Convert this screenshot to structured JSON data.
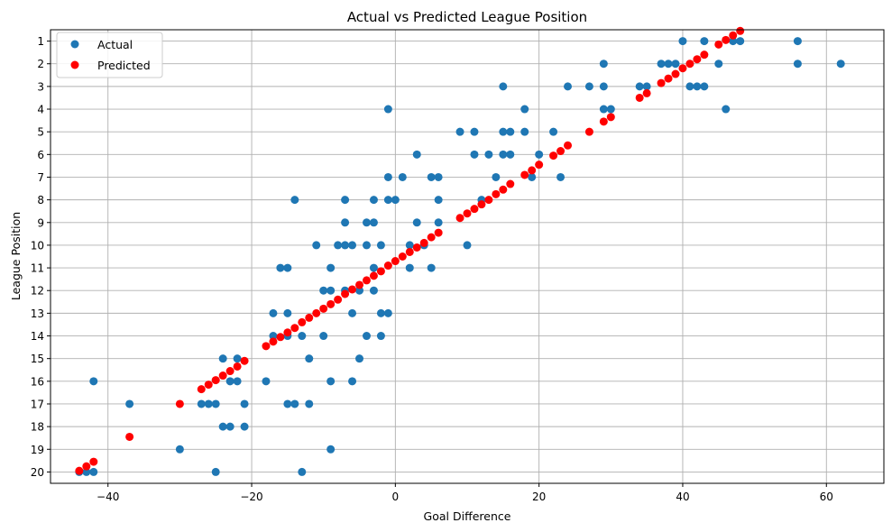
{
  "chart_data": {
    "type": "scatter",
    "title": "Actual vs Predicted League Position",
    "xlabel": "Goal Difference",
    "ylabel": "League Position",
    "xlim": [
      -48,
      68
    ],
    "ylim": [
      20.5,
      0.5
    ],
    "y_inverted": true,
    "grid": true,
    "legend_position": "top-left",
    "x_ticks": [
      -40,
      -20,
      0,
      20,
      40,
      60
    ],
    "x_tick_labels": [
      "−40",
      "−20",
      "0",
      "20",
      "40",
      "60"
    ],
    "y_ticks": [
      1,
      2,
      3,
      4,
      5,
      6,
      7,
      8,
      9,
      10,
      11,
      12,
      13,
      14,
      15,
      16,
      17,
      18,
      19,
      20
    ],
    "y_tick_labels": [
      "1",
      "2",
      "3",
      "4",
      "5",
      "6",
      "7",
      "8",
      "9",
      "10",
      "11",
      "12",
      "13",
      "14",
      "15",
      "16",
      "17",
      "18",
      "19",
      "20"
    ],
    "series": [
      {
        "name": "Actual",
        "color": "#1f77b4",
        "points": [
          [
            40,
            1
          ],
          [
            43,
            1
          ],
          [
            47,
            1
          ],
          [
            48,
            1
          ],
          [
            56,
            1
          ],
          [
            29,
            2
          ],
          [
            37,
            2
          ],
          [
            38,
            2
          ],
          [
            39,
            2
          ],
          [
            45,
            2
          ],
          [
            56,
            2
          ],
          [
            62,
            2
          ],
          [
            15,
            3
          ],
          [
            24,
            3
          ],
          [
            27,
            3
          ],
          [
            29,
            3
          ],
          [
            34,
            3
          ],
          [
            35,
            3
          ],
          [
            41,
            3
          ],
          [
            42,
            3
          ],
          [
            43,
            3
          ],
          [
            -1,
            4
          ],
          [
            18,
            4
          ],
          [
            29,
            4
          ],
          [
            30,
            4
          ],
          [
            46,
            4
          ],
          [
            9,
            5
          ],
          [
            11,
            5
          ],
          [
            15,
            5
          ],
          [
            16,
            5
          ],
          [
            18,
            5
          ],
          [
            22,
            5
          ],
          [
            3,
            6
          ],
          [
            11,
            6
          ],
          [
            13,
            6
          ],
          [
            15,
            6
          ],
          [
            16,
            6
          ],
          [
            20,
            6
          ],
          [
            -1,
            7
          ],
          [
            1,
            7
          ],
          [
            5,
            7
          ],
          [
            6,
            7
          ],
          [
            14,
            7
          ],
          [
            19,
            7
          ],
          [
            23,
            7
          ],
          [
            -14,
            8
          ],
          [
            -7,
            8
          ],
          [
            -3,
            8
          ],
          [
            -1,
            8
          ],
          [
            0,
            8
          ],
          [
            6,
            8
          ],
          [
            12,
            8
          ],
          [
            -7,
            9
          ],
          [
            -4,
            9
          ],
          [
            -3,
            9
          ],
          [
            3,
            9
          ],
          [
            6,
            9
          ],
          [
            -11,
            10
          ],
          [
            -8,
            10
          ],
          [
            -7,
            10
          ],
          [
            -6,
            10
          ],
          [
            -4,
            10
          ],
          [
            -2,
            10
          ],
          [
            2,
            10
          ],
          [
            4,
            10
          ],
          [
            10,
            10
          ],
          [
            -16,
            11
          ],
          [
            -15,
            11
          ],
          [
            -9,
            11
          ],
          [
            -3,
            11
          ],
          [
            2,
            11
          ],
          [
            5,
            11
          ],
          [
            -10,
            12
          ],
          [
            -9,
            12
          ],
          [
            -7,
            12
          ],
          [
            -5,
            12
          ],
          [
            -3,
            12
          ],
          [
            -17,
            13
          ],
          [
            -15,
            13
          ],
          [
            -6,
            13
          ],
          [
            -2,
            13
          ],
          [
            -1,
            13
          ],
          [
            -17,
            14
          ],
          [
            -15,
            14
          ],
          [
            -13,
            14
          ],
          [
            -10,
            14
          ],
          [
            -4,
            14
          ],
          [
            -2,
            14
          ],
          [
            -24,
            15
          ],
          [
            -22,
            15
          ],
          [
            -12,
            15
          ],
          [
            -5,
            15
          ],
          [
            -42,
            16
          ],
          [
            -23,
            16
          ],
          [
            -22,
            16
          ],
          [
            -18,
            16
          ],
          [
            -9,
            16
          ],
          [
            -6,
            16
          ],
          [
            -37,
            17
          ],
          [
            -27,
            17
          ],
          [
            -26,
            17
          ],
          [
            -25,
            17
          ],
          [
            -21,
            17
          ],
          [
            -15,
            17
          ],
          [
            -14,
            17
          ],
          [
            -12,
            17
          ],
          [
            -24,
            18
          ],
          [
            -23,
            18
          ],
          [
            -21,
            18
          ],
          [
            -30,
            19
          ],
          [
            -9,
            19
          ],
          [
            -44,
            20
          ],
          [
            -43,
            20
          ],
          [
            -42,
            20
          ],
          [
            -25,
            20
          ],
          [
            -13,
            20
          ]
        ]
      },
      {
        "name": "Predicted",
        "color": "#ff0000",
        "points": [
          [
            -44,
            19.95
          ],
          [
            -43,
            19.75
          ],
          [
            -42,
            19.55
          ],
          [
            -37,
            18.45
          ],
          [
            -30,
            17.0
          ],
          [
            -27,
            16.35
          ],
          [
            -26,
            16.15
          ],
          [
            -25,
            15.95
          ],
          [
            -24,
            15.75
          ],
          [
            -23,
            15.55
          ],
          [
            -22,
            15.35
          ],
          [
            -21,
            15.1
          ],
          [
            -18,
            14.45
          ],
          [
            -17,
            14.25
          ],
          [
            -16,
            14.05
          ],
          [
            -15,
            13.85
          ],
          [
            -14,
            13.65
          ],
          [
            -13,
            13.4
          ],
          [
            -12,
            13.2
          ],
          [
            -11,
            13.0
          ],
          [
            -10,
            12.8
          ],
          [
            -9,
            12.6
          ],
          [
            -8,
            12.4
          ],
          [
            -7,
            12.15
          ],
          [
            -6,
            11.95
          ],
          [
            -5,
            11.75
          ],
          [
            -4,
            11.55
          ],
          [
            -3,
            11.35
          ],
          [
            -2,
            11.15
          ],
          [
            -1,
            10.9
          ],
          [
            0,
            10.7
          ],
          [
            1,
            10.5
          ],
          [
            2,
            10.3
          ],
          [
            3,
            10.1
          ],
          [
            4,
            9.9
          ],
          [
            5,
            9.65
          ],
          [
            6,
            9.45
          ],
          [
            9,
            8.8
          ],
          [
            10,
            8.6
          ],
          [
            11,
            8.4
          ],
          [
            12,
            8.2
          ],
          [
            13,
            8.0
          ],
          [
            14,
            7.75
          ],
          [
            15,
            7.55
          ],
          [
            16,
            7.3
          ],
          [
            18,
            6.9
          ],
          [
            19,
            6.7
          ],
          [
            20,
            6.45
          ],
          [
            22,
            6.05
          ],
          [
            23,
            5.85
          ],
          [
            24,
            5.6
          ],
          [
            27,
            5.0
          ],
          [
            29,
            4.55
          ],
          [
            30,
            4.35
          ],
          [
            34,
            3.5
          ],
          [
            35,
            3.3
          ],
          [
            37,
            2.85
          ],
          [
            38,
            2.65
          ],
          [
            39,
            2.45
          ],
          [
            40,
            2.2
          ],
          [
            41,
            2.0
          ],
          [
            42,
            1.8
          ],
          [
            43,
            1.6
          ],
          [
            45,
            1.15
          ],
          [
            46,
            0.95
          ],
          [
            47,
            0.75
          ],
          [
            48,
            0.55
          ]
        ]
      }
    ]
  }
}
